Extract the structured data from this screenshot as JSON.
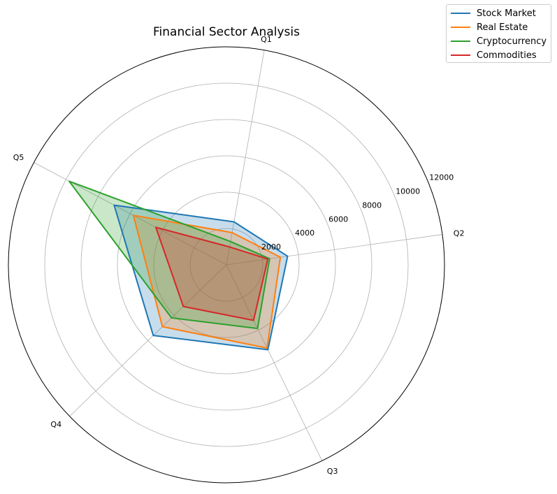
{
  "chart_data": {
    "type": "radar",
    "title": "Financial Sector Analysis",
    "categories": [
      "Q1",
      "Q2",
      "Q3",
      "Q4",
      "Q5"
    ],
    "radial_ticks": [
      2000,
      4000,
      6000,
      8000,
      10000,
      12000
    ],
    "rlim": [
      0,
      12000
    ],
    "grid": true,
    "legend_position": "top-right",
    "series": [
      {
        "name": "Stock Market",
        "color": "#1f77b4",
        "values": [
          2400,
          3400,
          5200,
          5600,
          7000
        ]
      },
      {
        "name": "Real Estate",
        "color": "#ff7f0e",
        "values": [
          1800,
          3000,
          5100,
          4900,
          5800
        ]
      },
      {
        "name": "Cryptocurrency",
        "color": "#2ca02c",
        "values": [
          1300,
          2400,
          3900,
          4200,
          9800
        ]
      },
      {
        "name": "Commodities",
        "color": "#d62728",
        "values": [
          1000,
          2300,
          3400,
          3300,
          4400
        ]
      }
    ]
  }
}
